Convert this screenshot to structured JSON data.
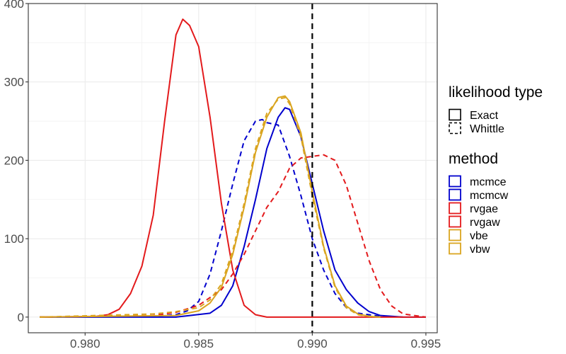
{
  "chart_data": {
    "type": "line",
    "xlim": [
      0.9775,
      0.9955
    ],
    "ylim": [
      -20,
      400
    ],
    "grid": true,
    "reference_line": {
      "x": 0.99,
      "style": "dashed",
      "color": "#000000"
    },
    "x_ticks": [
      {
        "value": 0.98,
        "label": "0.980"
      },
      {
        "value": 0.985,
        "label": "0.985"
      },
      {
        "value": 0.99,
        "label": "0.990"
      },
      {
        "value": 0.995,
        "label": "0.995"
      }
    ],
    "y_ticks": [
      {
        "value": 0,
        "label": "0"
      },
      {
        "value": 100,
        "label": "100"
      },
      {
        "value": 200,
        "label": "200"
      },
      {
        "value": 300,
        "label": "300"
      },
      {
        "value": 400,
        "label": "400"
      }
    ],
    "legend": {
      "placement": "right",
      "likelihood_title": "likelihood type",
      "likelihood_items": [
        {
          "label": "Exact",
          "dash": "solid"
        },
        {
          "label": "Whittle",
          "dash": "dashed"
        }
      ],
      "method_title": "method",
      "method_items": [
        {
          "label": "mcmce",
          "color": "#0000cd"
        },
        {
          "label": "mcmcw",
          "color": "#0000cd"
        },
        {
          "label": "rvgae",
          "color": "#e31a1c"
        },
        {
          "label": "rvgaw",
          "color": "#e31a1c"
        },
        {
          "label": "vbe",
          "color": "#daa520"
        },
        {
          "label": "vbw",
          "color": "#daa520"
        }
      ]
    },
    "series": [
      {
        "name": "mcmce",
        "color": "#0000cd",
        "dash": "solid",
        "x": [
          0.978,
          0.984,
          0.9855,
          0.986,
          0.9865,
          0.987,
          0.9875,
          0.988,
          0.9885,
          0.9888,
          0.989,
          0.9895,
          0.99,
          0.9905,
          0.991,
          0.9915,
          0.992,
          0.9925,
          0.993,
          0.994,
          0.995
        ],
        "y": [
          0,
          0,
          5,
          15,
          40,
          90,
          150,
          215,
          255,
          267,
          265,
          230,
          170,
          110,
          60,
          35,
          18,
          7,
          2,
          0,
          0
        ]
      },
      {
        "name": "mcmcw",
        "color": "#0000cd",
        "dash": "dashed",
        "x": [
          0.978,
          0.983,
          0.984,
          0.9845,
          0.985,
          0.9855,
          0.986,
          0.9865,
          0.987,
          0.9875,
          0.9878,
          0.988,
          0.9885,
          0.989,
          0.9895,
          0.99,
          0.9905,
          0.991,
          0.9915,
          0.992,
          0.993,
          0.994
        ],
        "y": [
          0,
          1,
          3,
          8,
          20,
          55,
          110,
          170,
          225,
          250,
          252,
          248,
          245,
          205,
          155,
          100,
          60,
          30,
          12,
          5,
          1,
          0
        ]
      },
      {
        "name": "rvgae",
        "color": "#e31a1c",
        "dash": "solid",
        "x": [
          0.978,
          0.9805,
          0.981,
          0.9815,
          0.982,
          0.9825,
          0.983,
          0.9835,
          0.984,
          0.9843,
          0.9846,
          0.985,
          0.9855,
          0.986,
          0.9865,
          0.987,
          0.9875,
          0.988,
          0.99,
          0.995
        ],
        "y": [
          0,
          1,
          3,
          10,
          30,
          65,
          130,
          250,
          360,
          380,
          372,
          345,
          255,
          145,
          60,
          15,
          3,
          0,
          0,
          0
        ]
      },
      {
        "name": "rvgaw",
        "color": "#e31a1c",
        "dash": "dashed",
        "x": [
          0.978,
          0.983,
          0.984,
          0.985,
          0.986,
          0.9865,
          0.987,
          0.9875,
          0.988,
          0.9885,
          0.989,
          0.9895,
          0.99,
          0.9905,
          0.991,
          0.9915,
          0.992,
          0.9925,
          0.993,
          0.9935,
          0.994,
          0.995
        ],
        "y": [
          0,
          2,
          6,
          15,
          35,
          55,
          80,
          110,
          140,
          160,
          190,
          203,
          205,
          207,
          200,
          168,
          120,
          72,
          35,
          14,
          4,
          0
        ]
      },
      {
        "name": "vbe",
        "color": "#daa520",
        "dash": "solid",
        "x": [
          0.978,
          0.984,
          0.985,
          0.9855,
          0.986,
          0.9865,
          0.987,
          0.9875,
          0.988,
          0.9885,
          0.9888,
          0.989,
          0.9895,
          0.99,
          0.9905,
          0.991,
          0.9915,
          0.992,
          0.9925,
          0.993
        ],
        "y": [
          0,
          2,
          8,
          18,
          38,
          80,
          140,
          210,
          255,
          280,
          282,
          275,
          235,
          160,
          90,
          40,
          14,
          4,
          1,
          0
        ]
      },
      {
        "name": "vbw",
        "color": "#daa520",
        "dash": "dashed",
        "x": [
          0.978,
          0.983,
          0.984,
          0.985,
          0.9855,
          0.986,
          0.9865,
          0.987,
          0.9875,
          0.988,
          0.9885,
          0.9888,
          0.989,
          0.9895,
          0.99,
          0.9905,
          0.991,
          0.9915,
          0.992,
          0.9925,
          0.993
        ],
        "y": [
          0,
          4,
          7,
          12,
          22,
          42,
          85,
          145,
          215,
          260,
          278,
          280,
          272,
          230,
          155,
          88,
          38,
          12,
          3,
          1,
          0
        ]
      }
    ]
  }
}
